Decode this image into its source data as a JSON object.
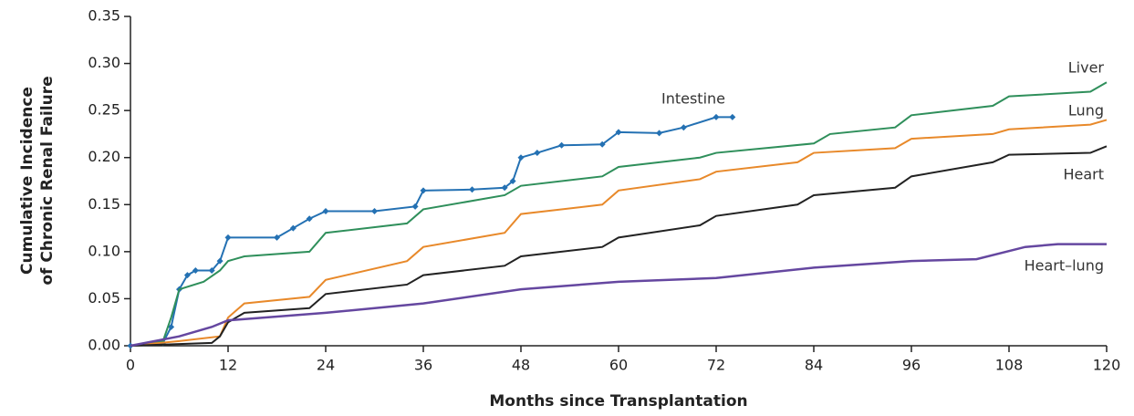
{
  "chart_data": {
    "type": "line",
    "xlabel": "Months since Transplantation",
    "ylabel": [
      "Cumulative Incidence",
      "of Chronic Renal Failure"
    ],
    "xlim": [
      0,
      120
    ],
    "xticks": [
      0,
      12,
      24,
      36,
      48,
      60,
      72,
      84,
      96,
      108,
      120
    ],
    "ylim": [
      0,
      0.35
    ],
    "yticks": [
      {
        "value": 0,
        "label": "0.00"
      },
      0.05,
      {
        "value": 0.1,
        "label": "0.10"
      },
      0.15,
      {
        "value": 0.2,
        "label": "0.20"
      },
      0.25,
      {
        "value": 0.3,
        "label": "0.30"
      },
      0.35
    ],
    "series": [
      {
        "name": "Intestine",
        "color": "#2471b3",
        "marker": "diamond",
        "x": [
          0,
          4,
          5,
          6,
          7,
          8,
          10,
          11,
          12,
          18,
          20,
          22,
          24,
          30,
          35,
          36,
          42,
          46,
          47,
          48,
          50,
          53,
          58,
          60,
          65,
          68,
          72,
          74
        ],
        "values": [
          0,
          0.003,
          0.02,
          0.06,
          0.075,
          0.08,
          0.08,
          0.09,
          0.115,
          0.115,
          0.125,
          0.135,
          0.143,
          0.143,
          0.148,
          0.165,
          0.166,
          0.168,
          0.175,
          0.2,
          0.205,
          0.213,
          0.214,
          0.227,
          0.226,
          0.232,
          0.243,
          0.243
        ]
      },
      {
        "name": "Liver",
        "color": "#2f8f5b",
        "x": [
          0,
          4,
          5,
          6,
          9,
          11,
          12,
          14,
          22,
          24,
          34,
          36,
          46,
          48,
          58,
          60,
          70,
          72,
          84,
          86,
          94,
          96,
          106,
          108,
          118,
          120
        ],
        "values": [
          0,
          0.005,
          0.03,
          0.06,
          0.068,
          0.08,
          0.09,
          0.095,
          0.1,
          0.12,
          0.13,
          0.145,
          0.16,
          0.17,
          0.18,
          0.19,
          0.2,
          0.205,
          0.215,
          0.225,
          0.232,
          0.245,
          0.255,
          0.265,
          0.27,
          0.28
        ]
      },
      {
        "name": "Lung",
        "color": "#e8892a",
        "x": [
          0,
          6,
          11,
          12,
          14,
          22,
          24,
          34,
          36,
          46,
          48,
          58,
          60,
          70,
          72,
          82,
          84,
          94,
          96,
          106,
          108,
          118,
          120
        ],
        "values": [
          0,
          0.005,
          0.01,
          0.03,
          0.045,
          0.052,
          0.07,
          0.09,
          0.105,
          0.12,
          0.14,
          0.15,
          0.165,
          0.177,
          0.185,
          0.195,
          0.205,
          0.21,
          0.22,
          0.225,
          0.23,
          0.235,
          0.24
        ]
      },
      {
        "name": "Heart",
        "color": "#222222",
        "x": [
          0,
          10,
          11,
          12,
          14,
          22,
          24,
          34,
          36,
          46,
          48,
          58,
          60,
          70,
          72,
          82,
          84,
          94,
          96,
          106,
          108,
          118,
          120
        ],
        "values": [
          0,
          0.003,
          0.01,
          0.025,
          0.035,
          0.04,
          0.055,
          0.065,
          0.075,
          0.085,
          0.095,
          0.105,
          0.115,
          0.128,
          0.138,
          0.15,
          0.16,
          0.168,
          0.18,
          0.195,
          0.203,
          0.205,
          0.212
        ]
      },
      {
        "name": "Heart–lung",
        "color": "#6547a0",
        "x": [
          0,
          6,
          10,
          12,
          24,
          36,
          48,
          60,
          72,
          84,
          96,
          104,
          110,
          114,
          120
        ],
        "values": [
          0,
          0.01,
          0.02,
          0.027,
          0.035,
          0.045,
          0.06,
          0.068,
          0.072,
          0.083,
          0.09,
          0.092,
          0.105,
          0.108,
          0.108
        ]
      }
    ]
  }
}
